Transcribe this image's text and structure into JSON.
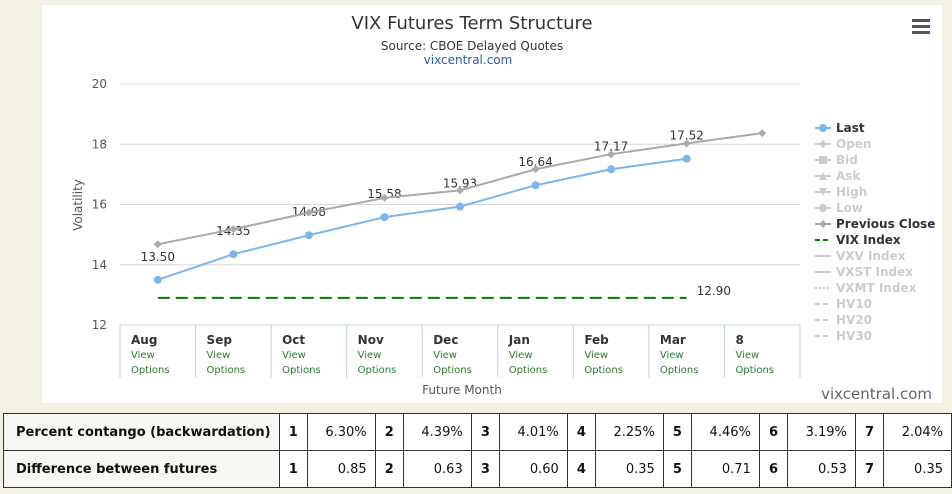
{
  "chart_data": {
    "type": "line",
    "title": "VIX Futures Term Structure",
    "subtitle": "Source: CBOE Delayed Quotes",
    "source_link": "vixcentral.com",
    "credit": "vixcentral.com",
    "x_label": "Future Month",
    "y_label": "Volatility",
    "categories": [
      "Aug",
      "Sep",
      "Oct",
      "Nov",
      "Dec",
      "Jan",
      "Feb",
      "Mar",
      "8"
    ],
    "category_link": "View Options",
    "ylim": [
      12,
      20
    ],
    "yticks": [
      12,
      14,
      16,
      18,
      20
    ],
    "grid": true,
    "legend": "right",
    "series": [
      {
        "name": "Last",
        "color": "#7cb5ec",
        "marker": "circle",
        "visible": true,
        "values": [
          13.5,
          14.35,
          14.98,
          15.58,
          15.93,
          16.64,
          17.17,
          17.52,
          null
        ],
        "value_labels": [
          "13.50",
          "14.35",
          "14.98",
          "15.58",
          "15.93",
          "16.64",
          "17.17",
          "17.52",
          null
        ]
      },
      {
        "name": "Open",
        "color": "#cccccc",
        "marker": "diamond",
        "visible": false,
        "values": [
          null,
          null,
          null,
          null,
          null,
          null,
          null,
          null,
          null
        ]
      },
      {
        "name": "Bid",
        "color": "#cccccc",
        "marker": "square",
        "visible": false,
        "values": [
          null,
          null,
          null,
          null,
          null,
          null,
          null,
          null,
          null
        ]
      },
      {
        "name": "Ask",
        "color": "#cccccc",
        "marker": "triangle",
        "visible": false,
        "values": [
          null,
          null,
          null,
          null,
          null,
          null,
          null,
          null,
          null
        ]
      },
      {
        "name": "High",
        "color": "#cccccc",
        "marker": "triangle-down",
        "visible": false,
        "values": [
          null,
          null,
          null,
          null,
          null,
          null,
          null,
          null,
          null
        ]
      },
      {
        "name": "Low",
        "color": "#cccccc",
        "marker": "circle",
        "visible": false,
        "values": [
          null,
          null,
          null,
          null,
          null,
          null,
          null,
          null,
          null
        ]
      },
      {
        "name": "Previous Close",
        "color": "#aaaaaa",
        "marker": "diamond",
        "visible": true,
        "values": [
          14.68,
          15.18,
          15.73,
          16.22,
          16.47,
          17.17,
          17.67,
          18.03,
          18.37
        ]
      },
      {
        "name": "VIX Index",
        "color": "#008000",
        "marker": "none",
        "dash": "dash",
        "visible": true,
        "values": [
          12.9,
          12.9,
          12.9,
          12.9,
          12.9,
          12.9,
          12.9,
          12.9,
          null
        ],
        "value_labels": [
          null,
          null,
          null,
          null,
          null,
          null,
          null,
          "12.90",
          null
        ]
      },
      {
        "name": "VXV Index",
        "color": "#cccccc",
        "marker": "none",
        "visible": false,
        "values": [
          null,
          null,
          null,
          null,
          null,
          null,
          null,
          null,
          null
        ]
      },
      {
        "name": "VXST Index",
        "color": "#cccccc",
        "marker": "none",
        "visible": false,
        "values": [
          null,
          null,
          null,
          null,
          null,
          null,
          null,
          null,
          null
        ]
      },
      {
        "name": "VXMT Index",
        "color": "#cccccc",
        "marker": "none",
        "dash": "dot",
        "visible": false,
        "values": [
          null,
          null,
          null,
          null,
          null,
          null,
          null,
          null,
          null
        ]
      },
      {
        "name": "HV10",
        "color": "#cccccc",
        "marker": "none",
        "dash": "dash",
        "visible": false,
        "values": [
          null,
          null,
          null,
          null,
          null,
          null,
          null,
          null,
          null
        ]
      },
      {
        "name": "HV20",
        "color": "#cccccc",
        "marker": "none",
        "dash": "dash",
        "visible": false,
        "values": [
          null,
          null,
          null,
          null,
          null,
          null,
          null,
          null,
          null
        ]
      },
      {
        "name": "HV30",
        "color": "#cccccc",
        "marker": "none",
        "dash": "dash",
        "visible": false,
        "values": [
          null,
          null,
          null,
          null,
          null,
          null,
          null,
          null,
          null
        ]
      }
    ]
  },
  "table": {
    "rows": [
      [
        "Percent contango (backwardation)",
        1,
        "6.30%",
        2,
        "4.39%",
        3,
        "4.01%",
        4,
        "2.25%",
        5,
        "4.46%",
        6,
        "3.19%",
        7,
        "2.04%"
      ],
      [
        "Difference between futures",
        1,
        "0.85",
        2,
        "0.63",
        3,
        "0.60",
        4,
        "0.35",
        5,
        "0.71",
        6,
        "0.53",
        7,
        "0.35"
      ]
    ]
  }
}
